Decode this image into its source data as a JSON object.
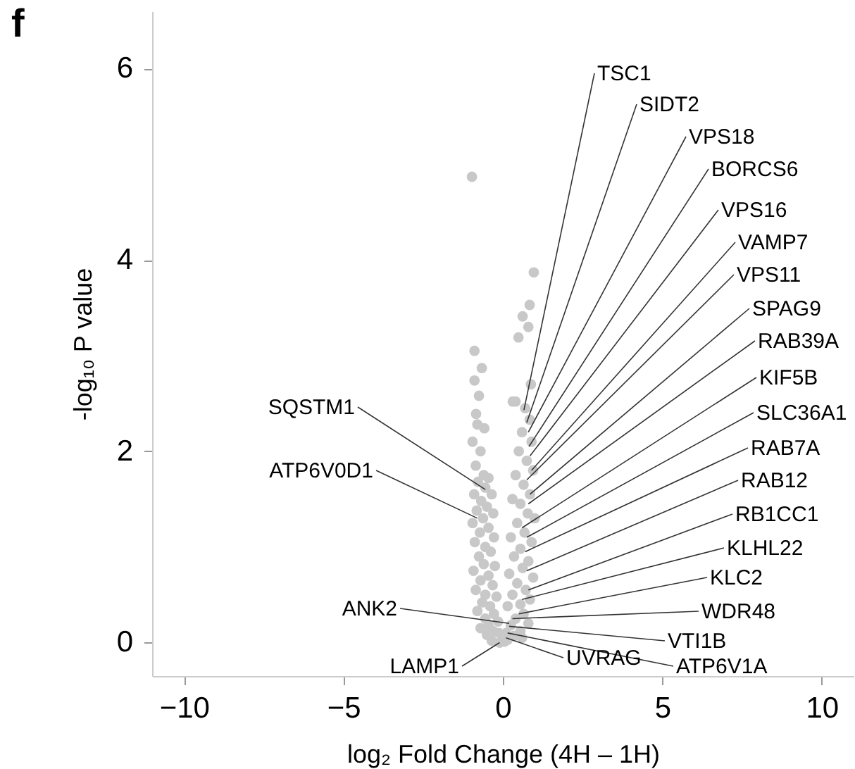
{
  "chart_data": {
    "type": "scatter",
    "title": "f",
    "xlabel": "log₂ Fold Change (4H – 1H)",
    "ylabel": "-log₁₀ P value",
    "xlim": [
      -11,
      11
    ],
    "ylim": [
      -0.35,
      6.6
    ],
    "xticks": [
      {
        "value": -10,
        "label": "−10"
      },
      {
        "value": -5,
        "label": "−5"
      },
      0,
      5,
      10
    ],
    "yticks": [
      0,
      2,
      4,
      6
    ],
    "grid": false,
    "marker": "circle",
    "series": [
      {
        "color": "#c8c8c8",
        "x": [
          -0.97,
          -0.89,
          -0.66,
          -0.89,
          -0.75,
          -0.84,
          -0.8,
          -0.58,
          -0.95,
          -0.7,
          -0.85,
          -0.6,
          -0.45,
          -0.78,
          -0.55,
          -0.9,
          -0.35,
          -0.68,
          -0.5,
          -0.82,
          -0.3,
          -0.62,
          -0.95,
          -0.45,
          -0.72,
          -0.28,
          -0.88,
          -0.55,
          -0.38,
          -0.75,
          -0.6,
          -0.25,
          -0.92,
          -0.45,
          -0.7,
          -0.32,
          -0.85,
          -0.55,
          -0.2,
          -0.65,
          -0.4,
          -0.8,
          -0.28,
          -0.55,
          -0.15,
          -0.45,
          -0.7,
          -0.3,
          -0.12,
          -0.5,
          -0.35,
          -0.1,
          0.97,
          0.84,
          0.62,
          0.8,
          0.49,
          0.88,
          0.31,
          0.4,
          0.84,
          0.7,
          0.6,
          0.9,
          0.5,
          0.75,
          0.95,
          0.4,
          0.65,
          0.85,
          0.3,
          0.55,
          0.78,
          1.0,
          0.45,
          0.68,
          0.25,
          0.9,
          0.55,
          0.35,
          0.8,
          0.62,
          0.2,
          0.95,
          0.45,
          0.72,
          0.3,
          0.85,
          0.55,
          0.15,
          0.65,
          0.4,
          0.8,
          0.25,
          0.55,
          0.1,
          0.35,
          0.6,
          0.15,
          0.05
        ],
        "values": [
          4.87,
          3.05,
          2.87,
          2.74,
          2.58,
          2.39,
          2.28,
          2.24,
          2.1,
          2.0,
          1.85,
          1.75,
          1.72,
          1.68,
          1.62,
          1.55,
          1.55,
          1.48,
          1.42,
          1.38,
          1.35,
          1.3,
          1.25,
          1.2,
          1.15,
          1.1,
          1.05,
          1.0,
          0.95,
          0.9,
          0.82,
          0.8,
          0.75,
          0.7,
          0.65,
          0.6,
          0.55,
          0.5,
          0.48,
          0.42,
          0.38,
          0.33,
          0.3,
          0.25,
          0.22,
          0.18,
          0.15,
          0.12,
          0.1,
          0.08,
          0.02,
          0.0,
          3.87,
          3.53,
          3.41,
          3.3,
          3.19,
          2.7,
          2.52,
          2.52,
          2.33,
          2.45,
          2.2,
          2.1,
          2.0,
          1.9,
          1.8,
          1.75,
          1.65,
          1.55,
          1.5,
          1.45,
          1.35,
          1.3,
          1.25,
          1.15,
          1.1,
          1.05,
          0.98,
          0.9,
          0.85,
          0.78,
          0.72,
          0.68,
          0.62,
          0.55,
          0.5,
          0.45,
          0.4,
          0.38,
          0.3,
          0.25,
          0.2,
          0.18,
          0.12,
          0.1,
          0.07,
          0.05,
          0.03,
          0.01
        ]
      }
    ],
    "annotations": [
      {
        "text": "TSC1",
        "x": 0.66,
        "y": 2.43
      },
      {
        "text": "SIDT2",
        "x": 0.75,
        "y": 2.3
      },
      {
        "text": "VPS18",
        "x": 0.8,
        "y": 2.2
      },
      {
        "text": "BORCS6",
        "x": 0.82,
        "y": 2.05
      },
      {
        "text": "VPS16",
        "x": 0.85,
        "y": 1.95
      },
      {
        "text": "VAMP7",
        "x": 0.9,
        "y": 1.8
      },
      {
        "text": "VPS11",
        "x": 0.75,
        "y": 1.7
      },
      {
        "text": "SPAG9",
        "x": 0.85,
        "y": 1.55
      },
      {
        "text": "RAB39A",
        "x": 0.8,
        "y": 1.45
      },
      {
        "text": "KIF5B",
        "x": 0.6,
        "y": 1.2
      },
      {
        "text": "SLC36A1",
        "x": 0.75,
        "y": 1.1
      },
      {
        "text": "RAB7A",
        "x": 0.7,
        "y": 0.95
      },
      {
        "text": "RAB12",
        "x": 0.75,
        "y": 0.75
      },
      {
        "text": "RB1CC1",
        "x": 0.8,
        "y": 0.55
      },
      {
        "text": "KLHL22",
        "x": 0.6,
        "y": 0.45
      },
      {
        "text": "KLC2",
        "x": 0.5,
        "y": 0.3
      },
      {
        "text": "WDR48",
        "x": 0.3,
        "y": 0.25
      },
      {
        "text": "VTI1B",
        "x": 0.2,
        "y": 0.17
      },
      {
        "text": "ATP6V1A",
        "x": 0.15,
        "y": 0.1
      },
      {
        "text": "UVRAG",
        "x": 0.1,
        "y": 0.05
      },
      {
        "text": "LAMP1",
        "x": -0.1,
        "y": 0.0
      },
      {
        "text": "ANK2",
        "x": 0.2,
        "y": 0.2
      },
      {
        "text": "SQSTM1",
        "x": -0.55,
        "y": 1.6
      },
      {
        "text": "ATP6V0D1",
        "x": -0.8,
        "y": 1.3
      }
    ]
  }
}
